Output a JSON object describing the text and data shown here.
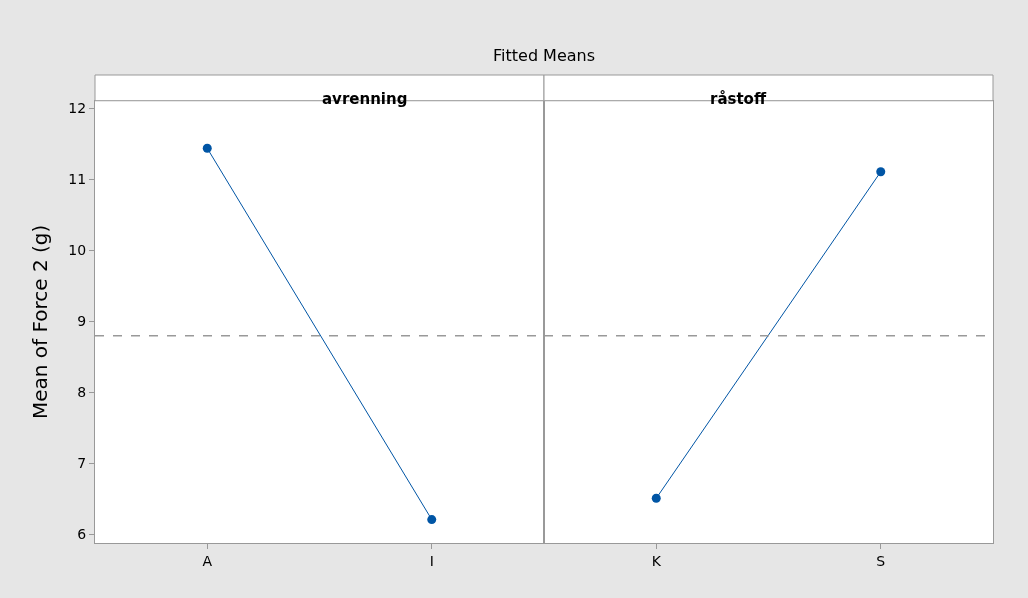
{
  "chart_data": [
    {
      "type": "line",
      "title": "avrenning",
      "ylabel": "Mean of Force 2 (g)",
      "annotations": [
        "Fitted Means"
      ],
      "categories": [
        "A",
        "I"
      ],
      "series": [
        {
          "color": "#0055a5",
          "values": [
            11.44,
            6.21
          ]
        }
      ],
      "ylim": [
        5.88,
        12.11
      ],
      "yticks": [
        6,
        7,
        8,
        9,
        10,
        11,
        12
      ],
      "marker": "circle",
      "line_style": "solid",
      "ref_lines": [
        {
          "axis": "y",
          "value": 8.8,
          "color": "#999999",
          "line_style": "dashed"
        }
      ]
    },
    {
      "type": "line",
      "title": "råstoff",
      "categories": [
        "K",
        "S"
      ],
      "series": [
        {
          "color": "#0055a5",
          "values": [
            6.51,
            11.11
          ]
        }
      ],
      "ylim": [
        5.88,
        12.11
      ],
      "yticks": [
        6,
        7,
        8,
        9,
        10,
        11,
        12
      ],
      "tick_labels": "x",
      "marker": "circle",
      "line_style": "solid",
      "ref_lines": [
        {
          "axis": "y",
          "value": 8.8,
          "color": "#999999",
          "line_style": "dashed"
        }
      ]
    }
  ]
}
